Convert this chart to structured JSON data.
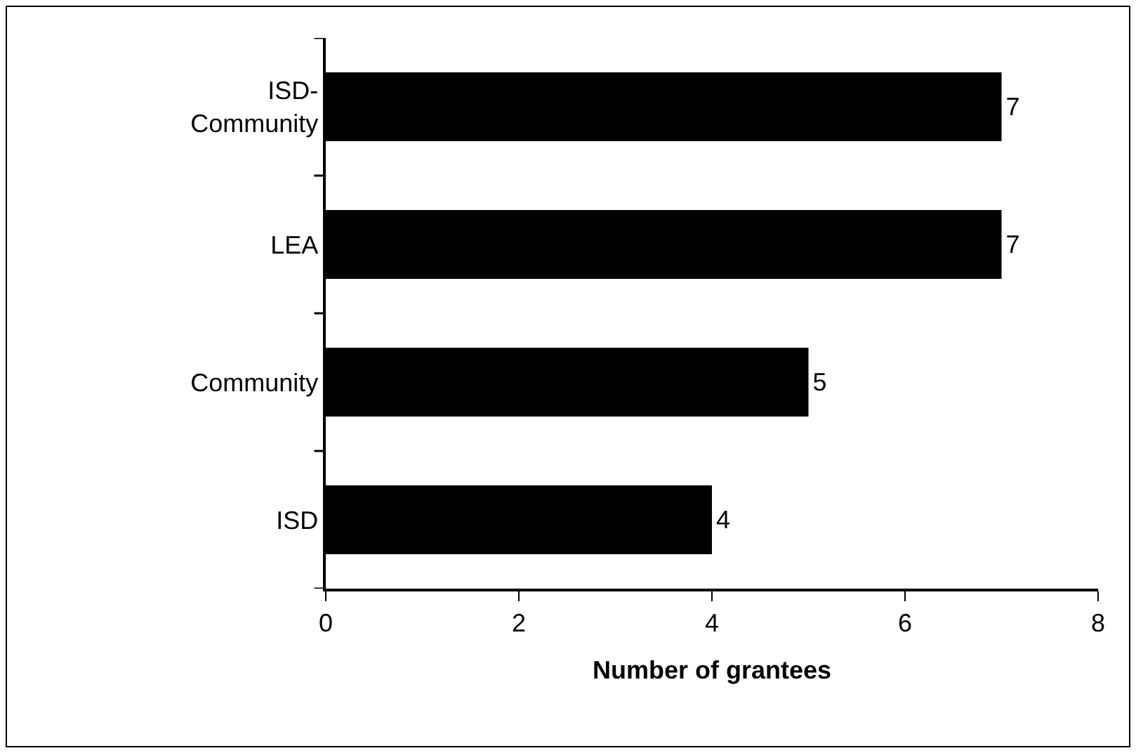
{
  "chart_data": {
    "type": "bar",
    "orientation": "horizontal",
    "xlabel": "Number of grantees",
    "categories": [
      "ISD-Community",
      "LEA",
      "Community",
      "ISD"
    ],
    "values": [
      7,
      7,
      5,
      4
    ],
    "color": "#000000",
    "xlim": [
      0,
      8
    ],
    "xticks": [
      0,
      2,
      4,
      6,
      8
    ],
    "grid": false,
    "data_labels": true
  }
}
